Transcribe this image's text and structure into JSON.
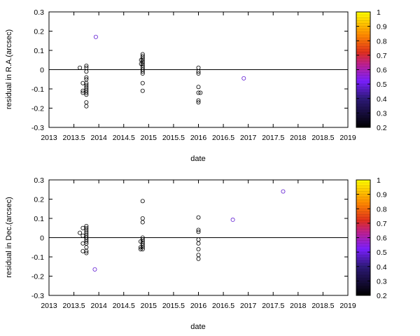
{
  "chart_data": [
    {
      "type": "scatter",
      "title": "",
      "xlabel": "date",
      "ylabel": "residual in R.A.(arcsec)",
      "xlim": [
        2013,
        2019
      ],
      "ylim": [
        -0.3,
        0.3
      ],
      "x_ticks": [
        "2013",
        "2013.5",
        "2014",
        "2014.5",
        "2015",
        "2015.5",
        "2016",
        "2016.5",
        "2017",
        "2017.5",
        "2018",
        "2018.5",
        "2019"
      ],
      "y_ticks": [
        "-0.3",
        "-0.2",
        "-0.1",
        "0",
        "0.1",
        "0.2",
        "0.3"
      ],
      "zero_line": true,
      "grid": false,
      "colorbar": {
        "range": [
          0.2,
          1
        ],
        "ticks": [
          "0.2",
          "0.3",
          "0.4",
          "0.5",
          "0.6",
          "0.7",
          "0.8",
          "0.9",
          "1"
        ],
        "palette": [
          "#000000",
          "#7a1fff",
          "#e0301c",
          "#ff9800",
          "#ffff00"
        ]
      },
      "points": [
        {
          "x": 2013.62,
          "y": 0.01,
          "c": 0.2
        },
        {
          "x": 2013.75,
          "y": 0.02,
          "c": 0.2
        },
        {
          "x": 2013.75,
          "y": 0.01,
          "c": 0.2
        },
        {
          "x": 2013.75,
          "y": -0.01,
          "c": 0.2
        },
        {
          "x": 2013.75,
          "y": -0.04,
          "c": 0.2
        },
        {
          "x": 2013.75,
          "y": -0.05,
          "c": 0.2
        },
        {
          "x": 2013.75,
          "y": -0.07,
          "c": 0.2
        },
        {
          "x": 2013.75,
          "y": -0.08,
          "c": 0.2
        },
        {
          "x": 2013.75,
          "y": -0.09,
          "c": 0.2
        },
        {
          "x": 2013.75,
          "y": -0.1,
          "c": 0.2
        },
        {
          "x": 2013.75,
          "y": -0.11,
          "c": 0.2
        },
        {
          "x": 2013.75,
          "y": -0.12,
          "c": 0.2
        },
        {
          "x": 2013.75,
          "y": -0.13,
          "c": 0.2
        },
        {
          "x": 2013.75,
          "y": -0.17,
          "c": 0.2
        },
        {
          "x": 2013.75,
          "y": -0.19,
          "c": 0.2
        },
        {
          "x": 2013.68,
          "y": -0.07,
          "c": 0.2
        },
        {
          "x": 2013.68,
          "y": -0.11,
          "c": 0.2
        },
        {
          "x": 2013.68,
          "y": -0.12,
          "c": 0.2
        },
        {
          "x": 2013.94,
          "y": 0.17,
          "c": 0.48
        },
        {
          "x": 2014.88,
          "y": 0.08,
          "c": 0.2
        },
        {
          "x": 2014.88,
          "y": 0.07,
          "c": 0.2
        },
        {
          "x": 2014.88,
          "y": 0.06,
          "c": 0.2
        },
        {
          "x": 2014.88,
          "y": 0.05,
          "c": 0.2
        },
        {
          "x": 2014.88,
          "y": 0.04,
          "c": 0.2
        },
        {
          "x": 2014.88,
          "y": 0.03,
          "c": 0.2
        },
        {
          "x": 2014.88,
          "y": 0.02,
          "c": 0.2
        },
        {
          "x": 2014.88,
          "y": 0.01,
          "c": 0.2
        },
        {
          "x": 2014.88,
          "y": 0.0,
          "c": 0.2
        },
        {
          "x": 2014.88,
          "y": -0.01,
          "c": 0.2
        },
        {
          "x": 2014.88,
          "y": -0.02,
          "c": 0.2
        },
        {
          "x": 2014.88,
          "y": -0.07,
          "c": 0.2
        },
        {
          "x": 2014.88,
          "y": -0.11,
          "c": 0.2
        },
        {
          "x": 2014.85,
          "y": 0.05,
          "c": 0.2
        },
        {
          "x": 2014.85,
          "y": 0.03,
          "c": 0.2
        },
        {
          "x": 2016.0,
          "y": 0.01,
          "c": 0.2
        },
        {
          "x": 2016.0,
          "y": -0.01,
          "c": 0.2
        },
        {
          "x": 2016.0,
          "y": -0.02,
          "c": 0.2
        },
        {
          "x": 2016.0,
          "y": -0.09,
          "c": 0.2
        },
        {
          "x": 2016.0,
          "y": -0.12,
          "c": 0.2
        },
        {
          "x": 2016.0,
          "y": -0.16,
          "c": 0.2
        },
        {
          "x": 2016.0,
          "y": -0.17,
          "c": 0.2
        },
        {
          "x": 2016.04,
          "y": -0.12,
          "c": 0.2
        },
        {
          "x": 2016.91,
          "y": -0.045,
          "c": 0.48
        }
      ]
    },
    {
      "type": "scatter",
      "title": "",
      "xlabel": "date",
      "ylabel": "residual in Dec.(arcsec)",
      "xlim": [
        2013,
        2019
      ],
      "ylim": [
        -0.3,
        0.3
      ],
      "x_ticks": [
        "2013",
        "2013.5",
        "2014",
        "2014.5",
        "2015",
        "2015.5",
        "2016",
        "2016.5",
        "2017",
        "2017.5",
        "2018",
        "2018.5",
        "2019"
      ],
      "y_ticks": [
        "-0.3",
        "-0.2",
        "-0.1",
        "0",
        "0.1",
        "0.2",
        "0.3"
      ],
      "zero_line": true,
      "grid": false,
      "colorbar": {
        "range": [
          0.2,
          1
        ],
        "ticks": [
          "0.2",
          "0.3",
          "0.4",
          "0.5",
          "0.6",
          "0.7",
          "0.8",
          "0.9",
          "1"
        ],
        "palette": [
          "#000000",
          "#7a1fff",
          "#e0301c",
          "#ff9800",
          "#ffff00"
        ]
      },
      "points": [
        {
          "x": 2013.62,
          "y": 0.025,
          "c": 0.2
        },
        {
          "x": 2013.75,
          "y": 0.06,
          "c": 0.2
        },
        {
          "x": 2013.75,
          "y": 0.05,
          "c": 0.2
        },
        {
          "x": 2013.75,
          "y": 0.04,
          "c": 0.2
        },
        {
          "x": 2013.75,
          "y": 0.03,
          "c": 0.2
        },
        {
          "x": 2013.75,
          "y": 0.02,
          "c": 0.2
        },
        {
          "x": 2013.75,
          "y": 0.01,
          "c": 0.2
        },
        {
          "x": 2013.75,
          "y": 0.0,
          "c": 0.2
        },
        {
          "x": 2013.75,
          "y": -0.01,
          "c": 0.2
        },
        {
          "x": 2013.75,
          "y": -0.02,
          "c": 0.2
        },
        {
          "x": 2013.75,
          "y": -0.03,
          "c": 0.2
        },
        {
          "x": 2013.75,
          "y": -0.05,
          "c": 0.2
        },
        {
          "x": 2013.75,
          "y": -0.07,
          "c": 0.2
        },
        {
          "x": 2013.75,
          "y": -0.08,
          "c": 0.2
        },
        {
          "x": 2013.68,
          "y": 0.05,
          "c": 0.2
        },
        {
          "x": 2013.68,
          "y": 0.01,
          "c": 0.2
        },
        {
          "x": 2013.68,
          "y": -0.03,
          "c": 0.2
        },
        {
          "x": 2013.68,
          "y": -0.07,
          "c": 0.2
        },
        {
          "x": 2013.92,
          "y": -0.165,
          "c": 0.48
        },
        {
          "x": 2014.88,
          "y": 0.19,
          "c": 0.2
        },
        {
          "x": 2014.88,
          "y": 0.1,
          "c": 0.2
        },
        {
          "x": 2014.88,
          "y": 0.08,
          "c": 0.2
        },
        {
          "x": 2014.88,
          "y": 0.0,
          "c": 0.2
        },
        {
          "x": 2014.88,
          "y": -0.01,
          "c": 0.2
        },
        {
          "x": 2014.88,
          "y": -0.02,
          "c": 0.2
        },
        {
          "x": 2014.88,
          "y": -0.03,
          "c": 0.2
        },
        {
          "x": 2014.88,
          "y": -0.04,
          "c": 0.2
        },
        {
          "x": 2014.88,
          "y": -0.05,
          "c": 0.2
        },
        {
          "x": 2014.88,
          "y": -0.06,
          "c": 0.2
        },
        {
          "x": 2014.84,
          "y": -0.02,
          "c": 0.2
        },
        {
          "x": 2014.84,
          "y": -0.05,
          "c": 0.2
        },
        {
          "x": 2014.84,
          "y": -0.06,
          "c": 0.2
        },
        {
          "x": 2016.0,
          "y": 0.105,
          "c": 0.2
        },
        {
          "x": 2016.0,
          "y": 0.04,
          "c": 0.2
        },
        {
          "x": 2016.0,
          "y": 0.03,
          "c": 0.2
        },
        {
          "x": 2016.0,
          "y": -0.01,
          "c": 0.2
        },
        {
          "x": 2016.0,
          "y": -0.03,
          "c": 0.2
        },
        {
          "x": 2016.0,
          "y": -0.06,
          "c": 0.2
        },
        {
          "x": 2016.0,
          "y": -0.09,
          "c": 0.2
        },
        {
          "x": 2016.0,
          "y": -0.11,
          "c": 0.2
        },
        {
          "x": 2016.69,
          "y": 0.093,
          "c": 0.48
        },
        {
          "x": 2017.7,
          "y": 0.24,
          "c": 0.48
        }
      ]
    }
  ]
}
